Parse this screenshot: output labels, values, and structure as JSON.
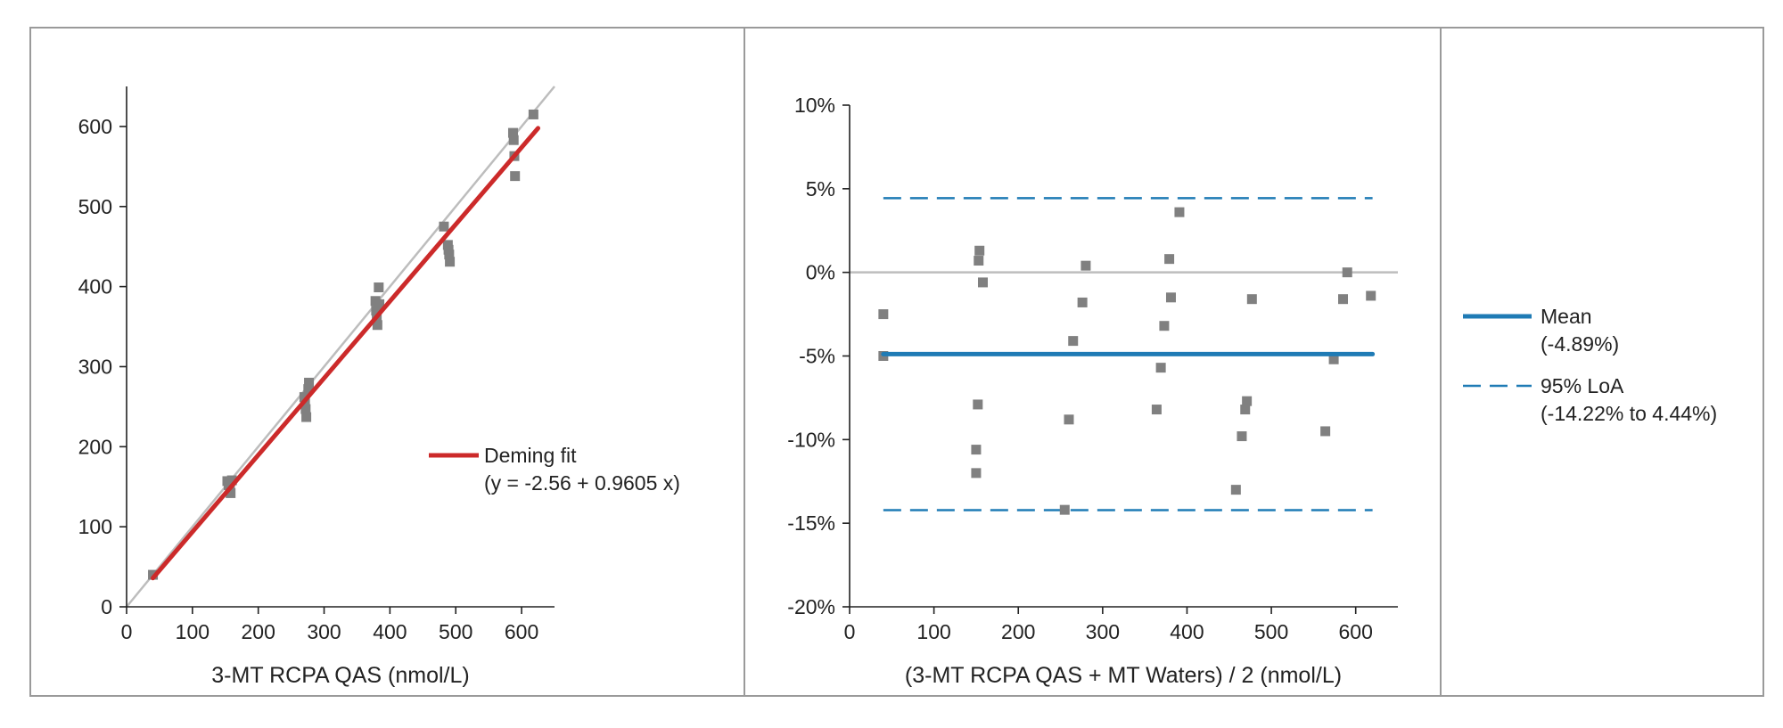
{
  "colors": {
    "frame": "#9a9a9a",
    "axis": "#222222",
    "points": "#808080",
    "identity_line": "#bdbdbd",
    "fit_line": "#cc2a2a",
    "mean_line": "#1f7bb5",
    "loa_line": "#1f7bb5",
    "zero_line": "#bdbdbd"
  },
  "chart_data": [
    {
      "type": "scatter",
      "xlabel": "3-MT RCPA QAS (nmol/L)",
      "ylabel": "",
      "xlim": [
        0,
        650
      ],
      "ylim": [
        0,
        650
      ],
      "xticks": [
        0,
        100,
        200,
        300,
        400,
        500,
        600
      ],
      "yticks": [
        0,
        100,
        200,
        300,
        400,
        500,
        600
      ],
      "xtick_labels": [
        "0",
        "100",
        "200",
        "300",
        "400",
        "500",
        "600"
      ],
      "ytick_labels": [
        "0",
        "100",
        "200",
        "300",
        "400",
        "500",
        "600"
      ],
      "grid": false,
      "legend_position": "right-middle",
      "series": [
        {
          "name": "",
          "kind": "points",
          "points": [
            [
              40,
              40
            ],
            [
              153,
              157
            ],
            [
              155,
              152
            ],
            [
              157,
              148
            ],
            [
              158,
              142
            ],
            [
              160,
              158
            ],
            [
              270,
              262
            ],
            [
              271,
              255
            ],
            [
              272,
              247
            ],
            [
              273,
              237
            ],
            [
              276,
              272
            ],
            [
              277,
              280
            ],
            [
              378,
              382
            ],
            [
              379,
              370
            ],
            [
              380,
              360
            ],
            [
              381,
              352
            ],
            [
              383,
              399
            ],
            [
              384,
              378
            ],
            [
              482,
              475
            ],
            [
              488,
              452
            ],
            [
              489,
              446
            ],
            [
              490,
              440
            ],
            [
              491,
              431
            ],
            [
              587,
              592
            ],
            [
              588,
              583
            ],
            [
              589,
              563
            ],
            [
              590,
              538
            ],
            [
              618,
              615
            ]
          ]
        },
        {
          "name": "",
          "kind": "identity-line",
          "x": [
            0,
            650
          ],
          "y": [
            0,
            650
          ]
        },
        {
          "name": "Deming fit",
          "kind": "fit-line",
          "x": [
            40,
            625
          ],
          "y": [
            35.9,
            597.8
          ]
        }
      ],
      "legend": {
        "label": "Deming fit",
        "detail": "(y = -2.56 + 0.9605 x)"
      }
    },
    {
      "type": "scatter",
      "xlabel": "(3-MT RCPA QAS + MT Waters) / 2 (nmol/L)",
      "ylabel": "",
      "xlim": [
        0,
        650
      ],
      "ylim": [
        -20,
        10
      ],
      "xticks": [
        0,
        100,
        200,
        300,
        400,
        500,
        600
      ],
      "yticks": [
        -20,
        -15,
        -10,
        -5,
        0,
        5,
        10
      ],
      "xtick_labels": [
        "0",
        "100",
        "200",
        "300",
        "400",
        "500",
        "600"
      ],
      "ytick_labels": [
        "-20%",
        "-15%",
        "-10%",
        "-5%",
        "0%",
        "5%",
        "10%"
      ],
      "grid": false,
      "series": [
        {
          "name": "",
          "kind": "points",
          "points": [
            [
              40,
              -2.5
            ],
            [
              40,
              -5.0
            ],
            [
              150,
              -10.6
            ],
            [
              150,
              -12.0
            ],
            [
              152,
              -7.9
            ],
            [
              153,
              0.7
            ],
            [
              154,
              1.3
            ],
            [
              158,
              -0.6
            ],
            [
              255,
              -14.2
            ],
            [
              260,
              -8.8
            ],
            [
              265,
              -4.1
            ],
            [
              276,
              -1.8
            ],
            [
              280,
              0.4
            ],
            [
              364,
              -8.2
            ],
            [
              369,
              -5.7
            ],
            [
              373,
              -3.2
            ],
            [
              379,
              0.8
            ],
            [
              381,
              -1.5
            ],
            [
              391,
              3.6
            ],
            [
              458,
              -13.0
            ],
            [
              465,
              -9.8
            ],
            [
              469,
              -8.2
            ],
            [
              471,
              -7.7
            ],
            [
              477,
              -1.6
            ],
            [
              564,
              -9.5
            ],
            [
              574,
              -5.2
            ],
            [
              585,
              -1.6
            ],
            [
              590,
              0.0
            ],
            [
              618,
              -1.4
            ]
          ]
        },
        {
          "name": "",
          "kind": "zero-line",
          "x": [
            0,
            650
          ],
          "y": [
            0,
            0
          ]
        },
        {
          "name": "Mean",
          "kind": "mean-line",
          "x": [
            40,
            620
          ],
          "y": [
            -4.89,
            -4.89
          ]
        },
        {
          "name": "95% LoA",
          "kind": "loa-upper",
          "x": [
            40,
            620
          ],
          "y": [
            4.44,
            4.44
          ]
        },
        {
          "name": "95% LoA",
          "kind": "loa-lower",
          "x": [
            40,
            620
          ],
          "y": [
            -14.22,
            -14.22
          ]
        }
      ],
      "legend": [
        {
          "label": "Mean",
          "detail": "(-4.89%)"
        },
        {
          "label": "95% LoA",
          "detail": "(-14.22% to 4.44%)"
        }
      ]
    }
  ]
}
